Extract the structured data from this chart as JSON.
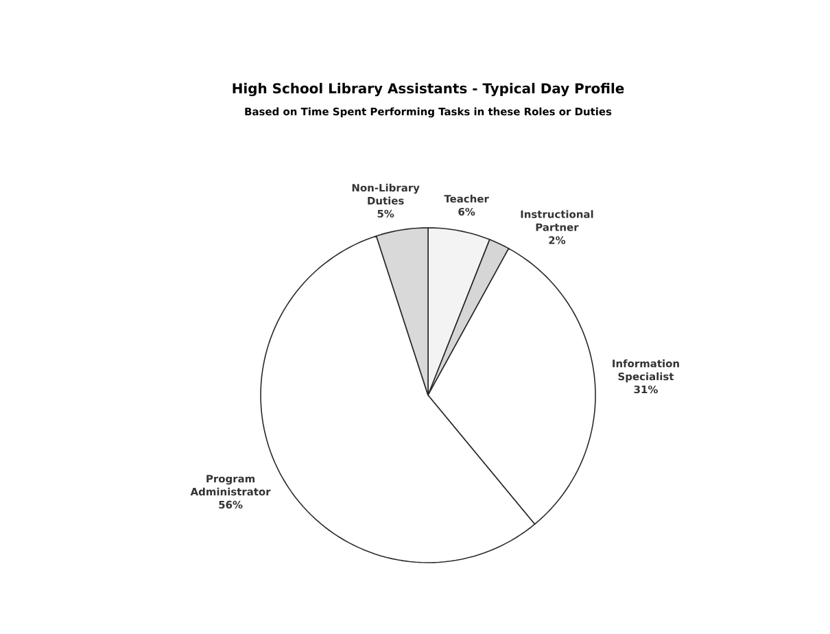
{
  "chart_data": {
    "type": "pie",
    "title": "High School Library Assistants - Typical Day Profile",
    "subtitle": "Based on Time Spent Performing Tasks in these Roles or Duties",
    "categories": [
      "Teacher",
      "Instructional Partner",
      "Information Specialist",
      "Program Administrator",
      "Non-Library Duties"
    ],
    "values": [
      6,
      2,
      31,
      56,
      5
    ],
    "value_labels": [
      "6%",
      "2%",
      "31%",
      "56%",
      "5%"
    ],
    "colors": [
      "#f3f3f3",
      "#d6d6d6",
      "#ffffff",
      "#ffffff",
      "#d9d9d9"
    ]
  }
}
